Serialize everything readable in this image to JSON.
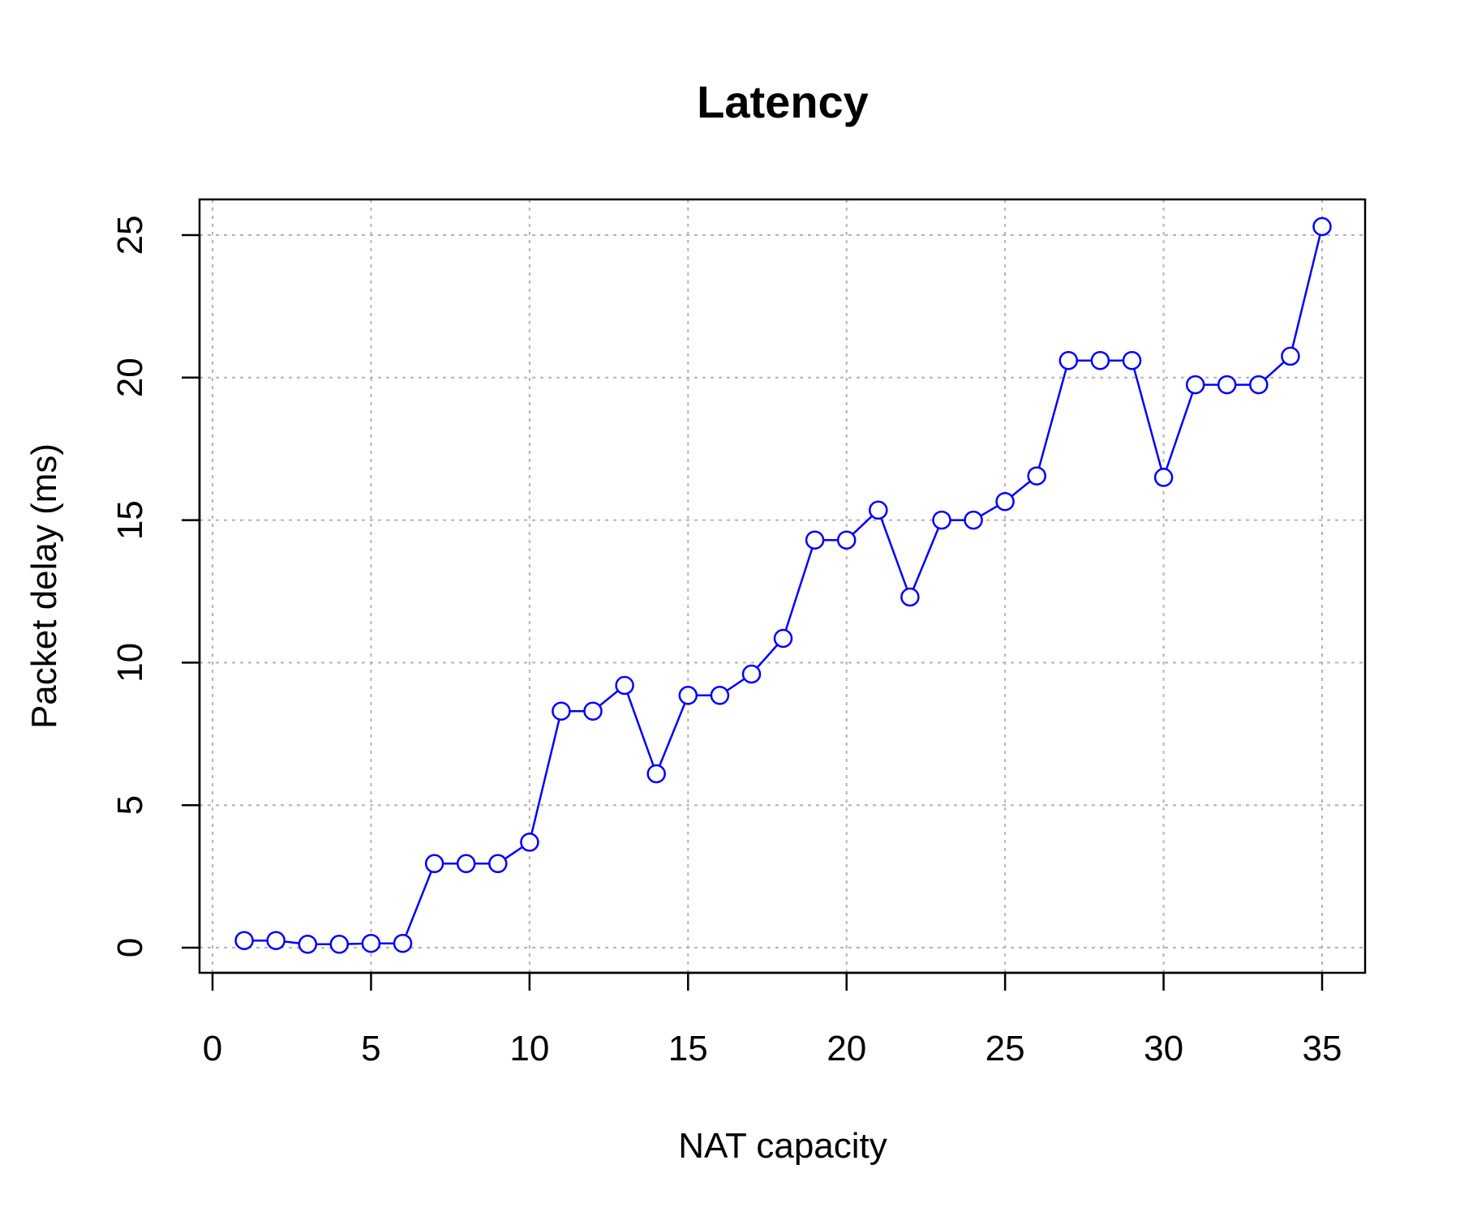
{
  "chart_data": {
    "type": "line",
    "title": "Latency",
    "xlabel": "NAT capacity",
    "ylabel": "Packet delay (ms)",
    "xlim": [
      0,
      35
    ],
    "ylim": [
      0,
      25
    ],
    "x_ticks": [
      0,
      5,
      10,
      15,
      20,
      25,
      30,
      35
    ],
    "y_ticks": [
      0,
      5,
      10,
      15,
      20,
      25
    ],
    "x_tick_labels": [
      "0",
      "5",
      "10",
      "15",
      "20",
      "25",
      "30",
      "35"
    ],
    "y_tick_labels": [
      "0",
      "5",
      "10",
      "15",
      "20",
      "25"
    ],
    "grid": true,
    "grid_style": "dotted",
    "marker": "open-circle",
    "series": [
      {
        "color": "#0000ff",
        "x": [
          1,
          2,
          3,
          4,
          5,
          6,
          7,
          8,
          9,
          10,
          11,
          12,
          13,
          14,
          15,
          16,
          17,
          18,
          19,
          20,
          21,
          22,
          23,
          24,
          25,
          26,
          27,
          28,
          29,
          30,
          31,
          32,
          33,
          34,
          35
        ],
        "y": [
          0.25,
          0.25,
          0.12,
          0.12,
          0.15,
          0.15,
          2.95,
          2.95,
          2.95,
          3.7,
          8.3,
          8.3,
          9.2,
          6.1,
          8.85,
          8.85,
          9.6,
          10.85,
          14.3,
          14.3,
          15.35,
          12.3,
          15.0,
          15.0,
          15.65,
          16.55,
          20.6,
          20.6,
          20.6,
          16.5,
          19.75,
          19.75,
          19.75,
          20.75,
          25.3
        ]
      }
    ]
  }
}
